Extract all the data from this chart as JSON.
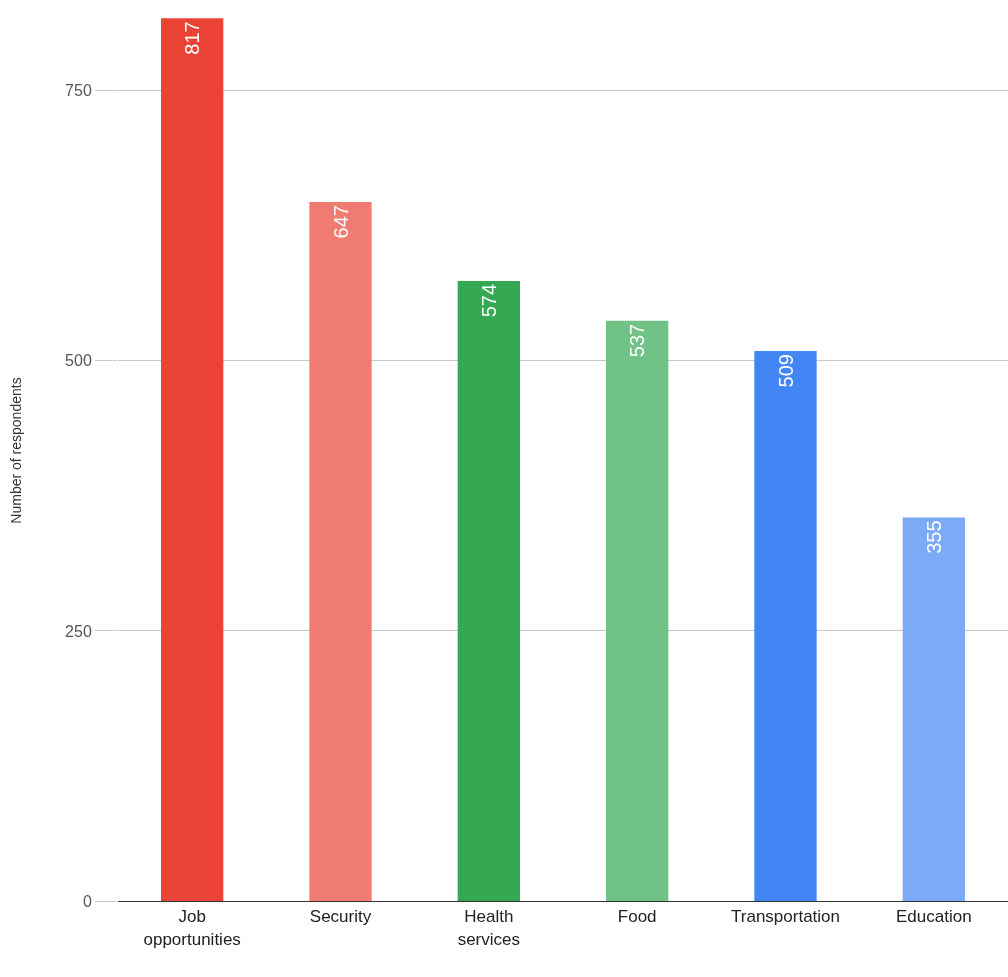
{
  "chart_data": {
    "type": "bar",
    "ylabel": "Number of respondents",
    "categories": [
      "Job opportunities",
      "Security",
      "Health services",
      "Food",
      "Transportation",
      "Education"
    ],
    "values": [
      817,
      647,
      574,
      537,
      509,
      355
    ],
    "colors": [
      "#ea4335",
      "#f07b72",
      "#34a853",
      "#71c287",
      "#4285f4",
      "#7baaf7"
    ],
    "ylim": [
      0,
      834
    ],
    "yticks": [
      0,
      250,
      500,
      750
    ],
    "grid": "y",
    "data_labels": true
  }
}
